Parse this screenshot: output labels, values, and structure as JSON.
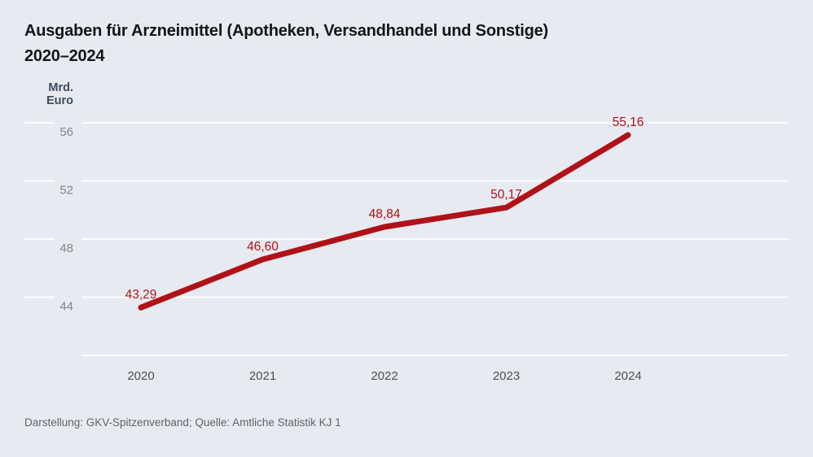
{
  "header": {
    "title_line1": "Ausgaben für Arzneimittel (Apotheken, Versandhandel und Sonstige)",
    "title_line2": "2020–2024"
  },
  "y_axis": {
    "unit_line1": "Mrd.",
    "unit_line2": "Euro"
  },
  "footer": {
    "source": "Darstellung: GKV-Spitzenverband; Quelle: Amtliche Statistik KJ 1"
  },
  "chart_data": {
    "type": "line",
    "title": "Ausgaben für Arzneimittel (Apotheken, Versandhandel und Sonstige) 2020–2024",
    "ylabel": "Mrd. Euro",
    "xlabel": "",
    "categories": [
      "2020",
      "2021",
      "2022",
      "2023",
      "2024"
    ],
    "values": [
      43.29,
      46.6,
      48.84,
      50.17,
      55.16
    ],
    "value_labels": [
      "43,29",
      "46,60",
      "48,84",
      "50,17",
      "55,16"
    ],
    "yticks": [
      44,
      48,
      52,
      56
    ],
    "ylim": [
      40,
      56
    ],
    "grid": true,
    "legend": false
  },
  "colors": {
    "background": "#e7eaf1",
    "gridline": "#ffffff",
    "line": "#b01217",
    "data_label": "#b01217",
    "y_tick_label": "#7c8694",
    "x_tick_label": "#47515f",
    "unit_label": "#3d4a5c",
    "title": "#141517",
    "source": "#5c6572"
  }
}
